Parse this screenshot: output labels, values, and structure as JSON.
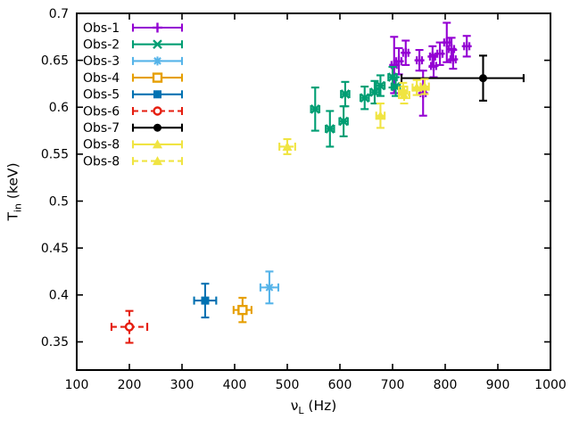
{
  "chart_data": {
    "type": "scatter",
    "title": "",
    "xlabel": {
      "main": "ν",
      "sub": "L",
      "rest": " (Hz)"
    },
    "ylabel": {
      "main": "T",
      "sub": "in",
      "rest": " (keV)"
    },
    "xlim": [
      100,
      1000
    ],
    "ylim": [
      0.32,
      0.7
    ],
    "grid": false,
    "legend_position": "top-left",
    "xticks": [
      100,
      200,
      300,
      400,
      500,
      600,
      700,
      800,
      900,
      1000
    ],
    "xtick_labels": [
      "100",
      "200",
      "300",
      "400",
      "500",
      "600",
      "700",
      "800",
      "900",
      "1000"
    ],
    "yticks": [
      0.35,
      0.4,
      0.45,
      0.5,
      0.55,
      0.6,
      0.65,
      0.7
    ],
    "ytick_labels": [
      "0.35",
      "0.4",
      "0.45",
      "0.5",
      "0.55",
      "0.6",
      "0.65",
      "0.7"
    ],
    "series": [
      {
        "name": "Obs-1",
        "color": "#9400D3",
        "marker": "plus",
        "line": "solid",
        "points": [
          {
            "x": 703,
            "y": 0.645,
            "xerr": 5,
            "yerr": 0.03
          },
          {
            "x": 712,
            "y": 0.649,
            "xerr": 5,
            "yerr": 0.014
          },
          {
            "x": 725,
            "y": 0.658,
            "xerr": 5,
            "yerr": 0.013
          },
          {
            "x": 751,
            "y": 0.65,
            "xerr": 5,
            "yerr": 0.011
          },
          {
            "x": 758,
            "y": 0.615,
            "xerr": 5,
            "yerr": 0.024
          },
          {
            "x": 776,
            "y": 0.654,
            "xerr": 5,
            "yerr": 0.011
          },
          {
            "x": 778,
            "y": 0.644,
            "xerr": 5,
            "yerr": 0.012
          },
          {
            "x": 790,
            "y": 0.657,
            "xerr": 5,
            "yerr": 0.012
          },
          {
            "x": 803,
            "y": 0.669,
            "xerr": 5,
            "yerr": 0.021
          },
          {
            "x": 812,
            "y": 0.662,
            "xerr": 5,
            "yerr": 0.012
          },
          {
            "x": 815,
            "y": 0.651,
            "xerr": 5,
            "yerr": 0.01
          },
          {
            "x": 841,
            "y": 0.665,
            "xerr": 5,
            "yerr": 0.011
          }
        ]
      },
      {
        "name": "Obs-2",
        "color": "#009E73",
        "marker": "cross",
        "line": "solid",
        "points": [
          {
            "x": 553,
            "y": 0.598,
            "xerr": 8,
            "yerr": 0.023
          },
          {
            "x": 581,
            "y": 0.577,
            "xerr": 8,
            "yerr": 0.019
          },
          {
            "x": 607,
            "y": 0.585,
            "xerr": 8,
            "yerr": 0.016
          },
          {
            "x": 610,
            "y": 0.614,
            "xerr": 8,
            "yerr": 0.013
          },
          {
            "x": 647,
            "y": 0.61,
            "xerr": 8,
            "yerr": 0.012
          },
          {
            "x": 666,
            "y": 0.616,
            "xerr": 8,
            "yerr": 0.012
          },
          {
            "x": 677,
            "y": 0.623,
            "xerr": 8,
            "yerr": 0.011
          },
          {
            "x": 700,
            "y": 0.632,
            "xerr": 8,
            "yerr": 0.011
          },
          {
            "x": 706,
            "y": 0.622,
            "xerr": 8,
            "yerr": 0.01
          }
        ]
      },
      {
        "name": "Obs-3",
        "color": "#56B4E9",
        "marker": "asterisk",
        "line": "solid",
        "points": [
          {
            "x": 466,
            "y": 0.408,
            "xerr": 17,
            "yerr": 0.017
          }
        ]
      },
      {
        "name": "Obs-4",
        "color": "#E69F00",
        "marker": "open-square",
        "line": "solid",
        "points": [
          {
            "x": 415,
            "y": 0.384,
            "xerr": 17,
            "yerr": 0.013
          }
        ]
      },
      {
        "name": "Obs-5",
        "color": "#0072B2",
        "marker": "filled-square",
        "line": "solid",
        "points": [
          {
            "x": 344,
            "y": 0.394,
            "xerr": 21,
            "yerr": 0.018
          }
        ]
      },
      {
        "name": "Obs-6",
        "color": "#E51E10",
        "marker": "open-circle",
        "line": "dashed",
        "points": [
          {
            "x": 200,
            "y": 0.366,
            "xerr": 34,
            "yerr": 0.017
          }
        ]
      },
      {
        "name": "Obs-7",
        "color": "#000000",
        "marker": "filled-circle",
        "line": "solid",
        "points": [
          {
            "x": 872,
            "y": 0.631,
            "xerr_minus": 155,
            "xerr_plus": 77,
            "yerr": 0.024
          }
        ]
      },
      {
        "name": "Obs-8",
        "color": "#F0E442",
        "marker": "filled-triangle",
        "line": "solid",
        "points": [
          {
            "x": 677,
            "y": 0.591,
            "xerr": 8,
            "yerr": 0.013
          },
          {
            "x": 720,
            "y": 0.618,
            "xerr": 8,
            "yerr": 0.008
          },
          {
            "x": 746,
            "y": 0.621,
            "xerr": 8,
            "yerr": 0.008
          },
          {
            "x": 761,
            "y": 0.622,
            "xerr": 8,
            "yerr": 0.008
          }
        ]
      },
      {
        "name": "Obs-8",
        "color": "#F0E442",
        "marker": "filled-triangle",
        "line": "dashed",
        "points": [
          {
            "x": 500,
            "y": 0.558,
            "xerr": 15,
            "yerr": 0.008
          },
          {
            "x": 722,
            "y": 0.613,
            "xerr": 10,
            "yerr": 0.009
          }
        ]
      }
    ],
    "axis_color": "#000000",
    "background_color": "#ffffff"
  }
}
